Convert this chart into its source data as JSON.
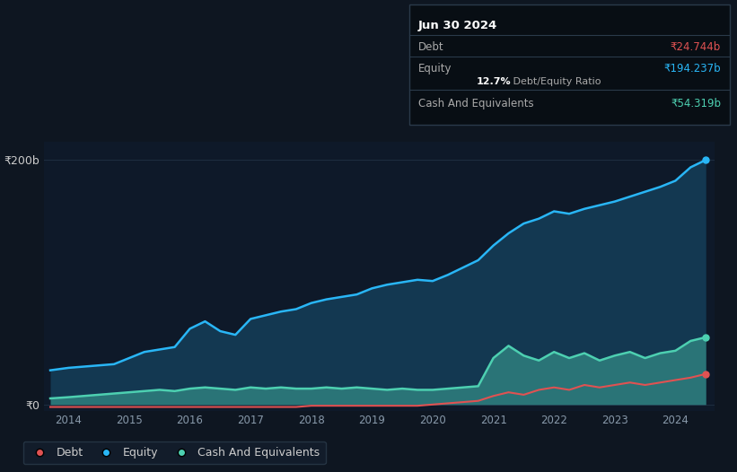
{
  "background_color": "#0e1621",
  "plot_bg_color": "#0e1929",
  "tooltip_bg": "#080e14",
  "tooltip_border": "#2a3a4a",
  "ylabel_200b": "₹200b",
  "ylabel_0": "₹0",
  "x_ticks": [
    "2014",
    "2015",
    "2016",
    "2017",
    "2018",
    "2019",
    "2020",
    "2021",
    "2022",
    "2023",
    "2024"
  ],
  "legend": [
    "Debt",
    "Equity",
    "Cash And Equivalents"
  ],
  "debt_color": "#e05252",
  "equity_color": "#29b6f6",
  "cash_color": "#4dd0b1",
  "grid_color": "#1e2e40",
  "tooltip": {
    "date": "Jun 30 2024",
    "debt_label": "Debt",
    "debt_value": "₹24.744b",
    "equity_label": "Equity",
    "equity_value": "₹194.237b",
    "ratio_bold": "12.7%",
    "ratio_rest": " Debt/Equity Ratio",
    "cash_label": "Cash And Equivalents",
    "cash_value": "₹54.319b"
  },
  "years": [
    2013.7,
    2014.0,
    2014.25,
    2014.5,
    2014.75,
    2015.0,
    2015.25,
    2015.5,
    2015.75,
    2016.0,
    2016.25,
    2016.5,
    2016.75,
    2017.0,
    2017.25,
    2017.5,
    2017.75,
    2018.0,
    2018.25,
    2018.5,
    2018.75,
    2019.0,
    2019.25,
    2019.5,
    2019.75,
    2020.0,
    2020.25,
    2020.5,
    2020.75,
    2021.0,
    2021.25,
    2021.5,
    2021.75,
    2022.0,
    2022.25,
    2022.5,
    2022.75,
    2023.0,
    2023.25,
    2023.5,
    2023.75,
    2024.0,
    2024.25,
    2024.5
  ],
  "equity": [
    28,
    30,
    31,
    32,
    33,
    38,
    43,
    45,
    47,
    62,
    68,
    60,
    57,
    70,
    73,
    76,
    78,
    83,
    86,
    88,
    90,
    95,
    98,
    100,
    102,
    101,
    106,
    112,
    118,
    130,
    140,
    148,
    152,
    158,
    156,
    160,
    163,
    166,
    170,
    174,
    178,
    183,
    194,
    200
  ],
  "debt": [
    -2,
    -2,
    -2,
    -2,
    -2,
    -2,
    -2,
    -2,
    -2,
    -2,
    -2,
    -2,
    -2,
    -2,
    -2,
    -2,
    -2,
    -1,
    -1,
    -1,
    -1,
    -1,
    -1,
    -1,
    -1,
    0,
    1,
    2,
    3,
    7,
    10,
    8,
    12,
    14,
    12,
    16,
    14,
    16,
    18,
    16,
    18,
    20,
    22,
    25
  ],
  "cash": [
    5,
    6,
    7,
    8,
    9,
    10,
    11,
    12,
    11,
    13,
    14,
    13,
    12,
    14,
    13,
    14,
    13,
    13,
    14,
    13,
    14,
    13,
    12,
    13,
    12,
    12,
    13,
    14,
    15,
    38,
    48,
    40,
    36,
    43,
    38,
    42,
    36,
    40,
    43,
    38,
    42,
    44,
    52,
    55
  ],
  "ylim": [
    -5,
    215
  ],
  "xlim": [
    2013.6,
    2024.65
  ]
}
